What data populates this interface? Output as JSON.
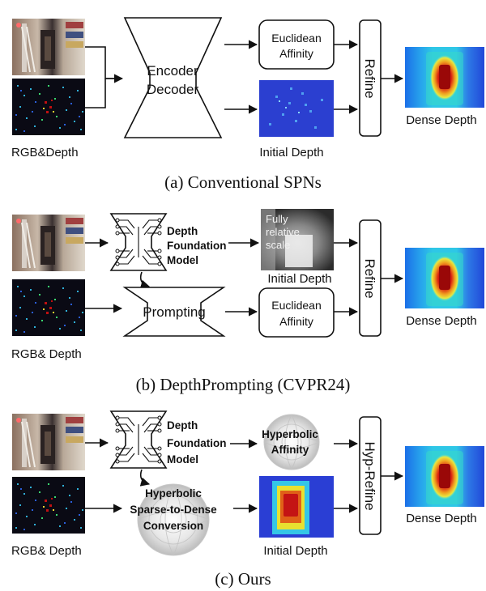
{
  "panel_a": {
    "caption": "(a) Conventional SPNs",
    "input_label": "RGB&Depth",
    "encoder_line1": "Encoder",
    "encoder_line2": "Decoder",
    "affinity_line1": "Euclidean",
    "affinity_line2": "Affinity",
    "initial_label": "Initial Depth",
    "refine_label": "Refine",
    "output_label": "Dense Depth"
  },
  "panel_b": {
    "caption": "(b) DepthPrompting (CVPR24)",
    "input_label": "RGB& Depth",
    "dfm_line1": "Depth",
    "dfm_line2": "Foundation",
    "dfm_line3": "Model",
    "relative_line1": "Fully",
    "relative_line2": "relative",
    "relative_line3": "scale",
    "initial_label": "Initial Depth",
    "prompting_label": "Prompting",
    "affinity_line1": "Euclidean",
    "affinity_line2": "Affinity",
    "refine_label": "Refine",
    "output_label": "Dense Depth"
  },
  "panel_c": {
    "caption": "(c) Ours",
    "input_label": "RGB& Depth",
    "dfm_line1": "Depth",
    "dfm_line2": "Foundation",
    "dfm_line3": "Model",
    "hyp_aff_line1": "Hyperbolic",
    "hyp_aff_line2": "Affinity",
    "conv_line1": "Hyperbolic",
    "conv_line2": "Sparse-to-Dense",
    "conv_line3": "Conversion",
    "initial_label": "Initial Depth",
    "refine_label": "Hyp-Refine",
    "output_label": "Dense Depth"
  },
  "colors": {
    "depth_blue": "#2f3fd6",
    "depth_cyan": "#33c7e8",
    "depth_yellow": "#e8e030",
    "depth_red": "#c41414",
    "sparse_bg": "#0a0a14",
    "arrow": "#111111"
  }
}
